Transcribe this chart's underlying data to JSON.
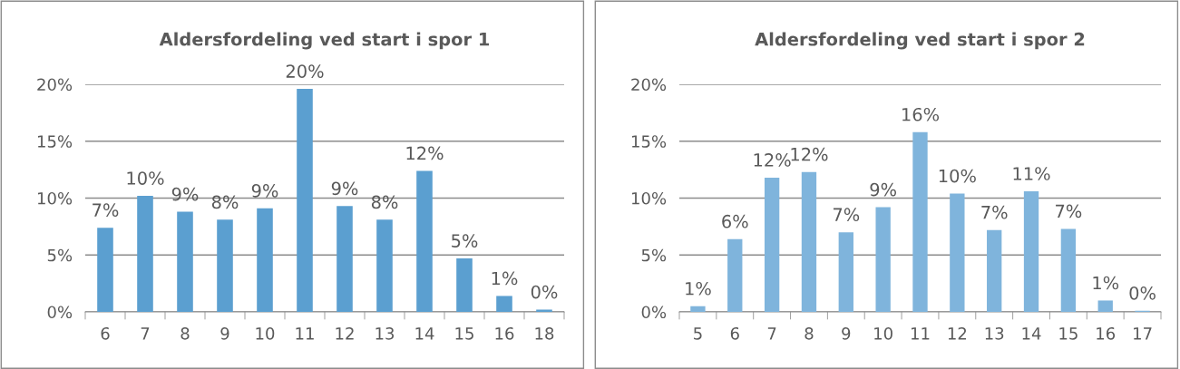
{
  "chart_data": [
    {
      "type": "bar",
      "title": "Aldersfordeling ved start i spor 1",
      "categories": [
        "6",
        "7",
        "8",
        "9",
        "10",
        "11",
        "12",
        "13",
        "14",
        "15",
        "16",
        "18"
      ],
      "color": "#5b9fd0",
      "values": [
        7.4,
        10.2,
        8.8,
        8.1,
        9.1,
        19.6,
        9.3,
        8.1,
        12.4,
        4.7,
        1.4,
        0.2
      ],
      "value_labels": [
        "7%",
        "10%",
        "9%",
        "8%",
        "9%",
        "20%",
        "9%",
        "8%",
        "12%",
        "5%",
        "1%",
        "0%"
      ],
      "ylim": [
        0,
        20
      ],
      "yticks": [
        {
          "value": 0,
          "label": "0%"
        },
        {
          "value": 5,
          "label": "5%"
        },
        {
          "value": 10,
          "label": "10%"
        },
        {
          "value": 15,
          "label": "15%"
        },
        {
          "value": 20,
          "label": "20%"
        }
      ],
      "grid": "y",
      "legend": false
    },
    {
      "type": "bar",
      "title": "Aldersfordeling ved start i spor 2",
      "categories": [
        "5",
        "6",
        "7",
        "8",
        "9",
        "10",
        "11",
        "12",
        "13",
        "14",
        "15",
        "16",
        "17"
      ],
      "color": "#7fb4dc",
      "values": [
        0.5,
        6.4,
        11.8,
        12.3,
        7.0,
        9.2,
        15.8,
        10.4,
        7.2,
        10.6,
        7.3,
        1.0,
        0.1
      ],
      "value_labels": [
        "1%",
        "6%",
        "12%",
        "12%",
        "7%",
        "9%",
        "16%",
        "10%",
        "7%",
        "11%",
        "7%",
        "1%",
        "0%"
      ],
      "ylim": [
        0,
        20
      ],
      "yticks": [
        {
          "value": 0,
          "label": "0%"
        },
        {
          "value": 5,
          "label": "5%"
        },
        {
          "value": 10,
          "label": "10%"
        },
        {
          "value": 15,
          "label": "15%"
        },
        {
          "value": 20,
          "label": "20%"
        }
      ],
      "grid": "y",
      "legend": false
    }
  ]
}
